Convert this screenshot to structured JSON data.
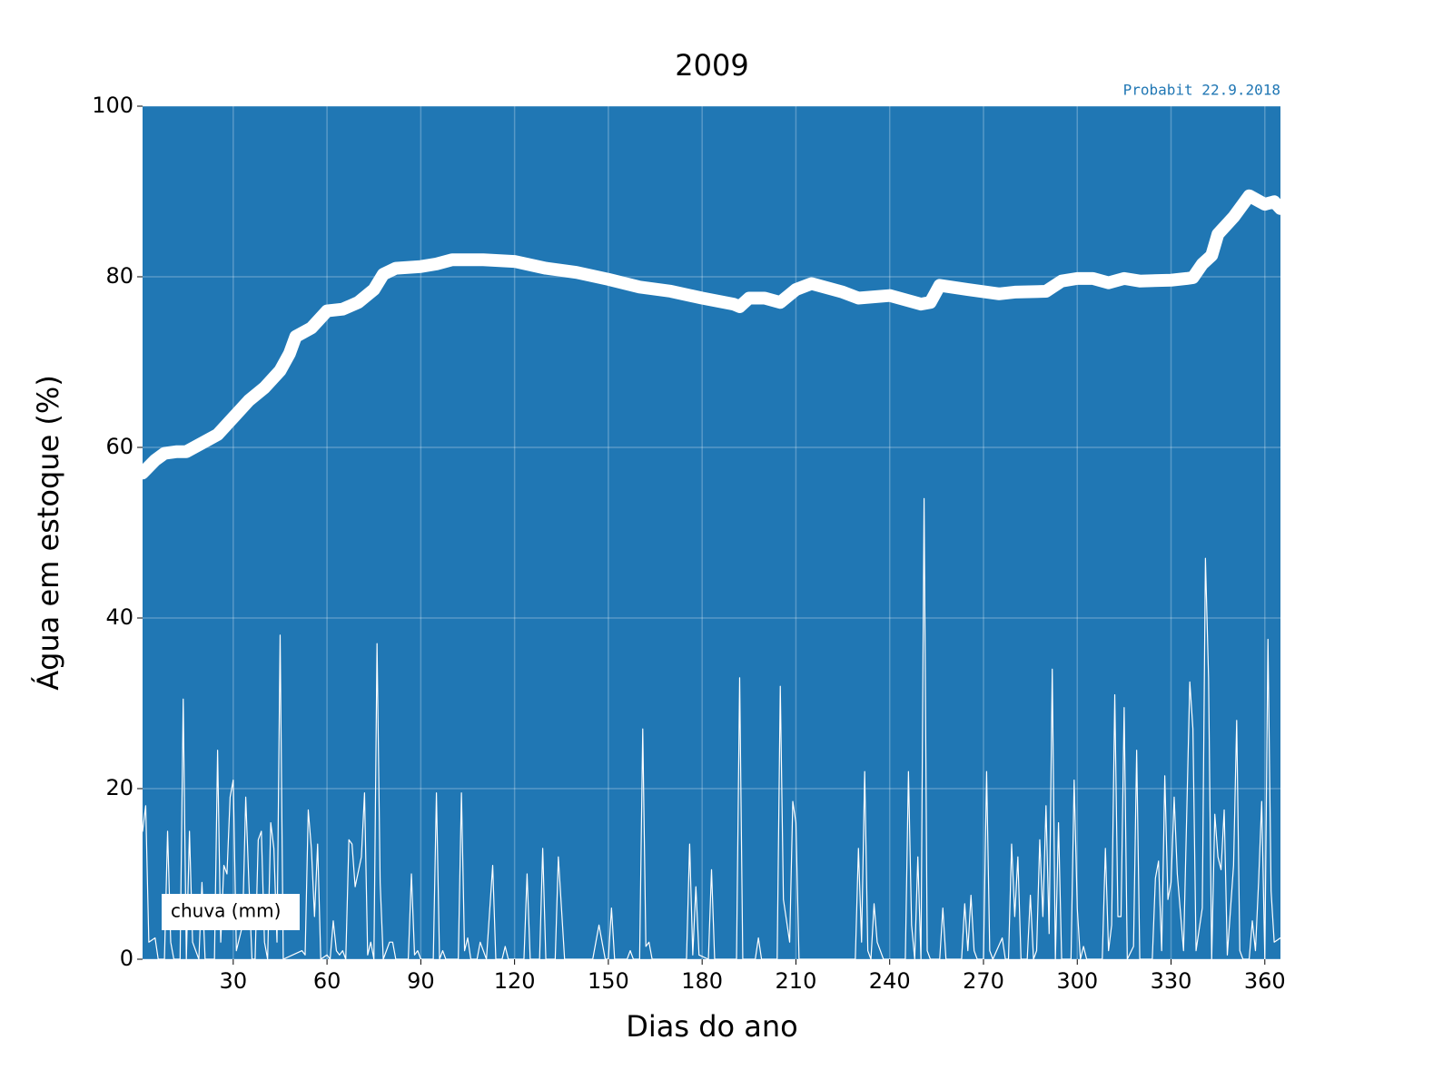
{
  "chart_data": {
    "type": "line",
    "title": "2009",
    "annotation": "Probabit 22.9.2018",
    "xlabel": "Dias do ano",
    "ylabel": "Água em estoque (%)",
    "xlim": [
      1,
      365
    ],
    "ylim": [
      0,
      100
    ],
    "xticks": [
      30,
      60,
      90,
      120,
      150,
      180,
      210,
      240,
      270,
      300,
      330,
      360
    ],
    "yticks": [
      0,
      20,
      40,
      60,
      80,
      100
    ],
    "grid": true,
    "background": "#2077b4",
    "legend": "lower left",
    "series": [
      {
        "color": "#ffffff",
        "line_width": 14,
        "x": [
          1,
          5,
          8,
          12,
          15,
          20,
          25,
          30,
          35,
          40,
          45,
          48,
          50,
          55,
          60,
          65,
          70,
          75,
          78,
          82,
          90,
          95,
          100,
          110,
          120,
          130,
          140,
          150,
          160,
          170,
          180,
          190,
          192,
          195,
          200,
          205,
          210,
          215,
          225,
          230,
          240,
          250,
          253,
          256,
          265,
          275,
          280,
          290,
          295,
          300,
          305,
          310,
          315,
          320,
          330,
          335,
          337,
          340,
          343,
          345,
          350,
          355,
          360,
          363,
          365
        ],
        "values": [
          57,
          58.5,
          59.3,
          59.5,
          59.5,
          60.5,
          61.5,
          63.5,
          65.5,
          67,
          69,
          71,
          73,
          74,
          76,
          76.2,
          77,
          78.5,
          80.3,
          81,
          81.2,
          81.5,
          82,
          82,
          81.8,
          81,
          80.5,
          79.7,
          78.8,
          78.3,
          77.5,
          76.8,
          76.5,
          77.5,
          77.5,
          77,
          78.5,
          79.2,
          78.2,
          77.5,
          77.8,
          76.8,
          77,
          79,
          78.5,
          78,
          78.2,
          78.3,
          79.5,
          79.8,
          79.8,
          79.3,
          79.8,
          79.5,
          79.6,
          79.8,
          79.9,
          81.5,
          82.5,
          85,
          87,
          89.5,
          88.5,
          88.8,
          88
        ]
      },
      {
        "name": "chuva (mm)",
        "color": "#ffffff",
        "line_width": 1.2,
        "x": [
          1,
          2,
          3,
          5,
          6,
          8,
          9,
          10,
          11,
          13,
          14,
          15,
          16,
          17,
          19,
          20,
          21,
          24,
          25,
          26,
          27,
          28,
          29,
          30,
          31,
          33,
          34,
          35,
          36,
          37,
          38,
          39,
          40,
          41,
          42,
          43,
          44,
          45,
          46,
          52,
          53,
          54,
          55,
          56,
          57,
          58,
          60,
          61,
          62,
          63,
          64,
          65,
          66,
          67,
          68,
          69,
          71,
          72,
          73,
          74,
          75,
          76,
          77,
          78,
          80,
          81,
          82,
          86,
          87,
          88,
          89,
          90,
          94,
          95,
          96,
          97,
          98,
          102,
          103,
          104,
          105,
          106,
          108,
          109,
          110,
          111,
          113,
          114,
          116,
          117,
          118,
          123,
          124,
          125,
          128,
          129,
          130,
          133,
          134,
          135,
          136,
          145,
          147,
          149,
          150,
          151,
          152,
          156,
          157,
          158,
          160,
          161,
          162,
          163,
          164,
          175,
          176,
          177,
          178,
          179,
          182,
          183,
          184,
          191,
          192,
          193,
          197,
          198,
          199,
          204,
          205,
          206,
          208,
          209,
          210,
          211,
          229,
          230,
          231,
          232,
          233,
          234,
          235,
          236,
          237,
          238,
          245,
          246,
          247,
          248,
          249,
          250,
          251,
          252,
          253,
          256,
          257,
          258,
          263,
          264,
          265,
          266,
          267,
          268,
          270,
          271,
          272,
          273,
          276,
          277,
          278,
          279,
          280,
          281,
          282,
          284,
          285,
          286,
          287,
          288,
          289,
          290,
          291,
          292,
          293,
          294,
          295,
          298,
          299,
          300,
          301,
          302,
          303,
          308,
          309,
          310,
          311,
          312,
          313,
          314,
          315,
          316,
          318,
          319,
          320,
          324,
          325,
          326,
          327,
          328,
          329,
          330,
          331,
          332,
          334,
          336,
          337,
          338,
          340,
          341,
          342,
          343,
          344,
          345,
          346,
          347,
          348,
          350,
          351,
          352,
          353,
          355,
          356,
          357,
          358,
          359,
          360,
          361,
          362,
          363,
          365
        ],
        "values": [
          15,
          18,
          2,
          2.5,
          0,
          0,
          15,
          2,
          0,
          0,
          30.5,
          0,
          15,
          2,
          0,
          9,
          0,
          0,
          24.5,
          2,
          11,
          10,
          19,
          21,
          1,
          4,
          19,
          9,
          0,
          0,
          14,
          15,
          2,
          0,
          16,
          13,
          2,
          38,
          0,
          1,
          0.5,
          17.5,
          13,
          5,
          13.5,
          0,
          0.5,
          0,
          4.5,
          1,
          0.5,
          1,
          0,
          14,
          13.5,
          8.5,
          12,
          19.5,
          0.5,
          2,
          0,
          37,
          9,
          0,
          2,
          2,
          0,
          0,
          10,
          0.5,
          1,
          0,
          0,
          19.5,
          0,
          1,
          0,
          0,
          19.5,
          1,
          2.5,
          0,
          0,
          2,
          1,
          0,
          11,
          0,
          0,
          1.5,
          0,
          0,
          10,
          0,
          0,
          13,
          0,
          0,
          12,
          6,
          0,
          0,
          4,
          0,
          0,
          6,
          0,
          0,
          1,
          0,
          0,
          27,
          1.5,
          2,
          0,
          0,
          13.5,
          0.5,
          8.5,
          0.5,
          0,
          10.5,
          0,
          0,
          33,
          0,
          0,
          2.5,
          0,
          0,
          32,
          7,
          2,
          18.5,
          16,
          0,
          0,
          13,
          2,
          22,
          1,
          0,
          6.5,
          2,
          1,
          0,
          0,
          22,
          4,
          0,
          12,
          0,
          54,
          1,
          0,
          0,
          6,
          0,
          0,
          6.5,
          1,
          7.5,
          1,
          0,
          0,
          22,
          1,
          0,
          2.5,
          0,
          0,
          13.5,
          5,
          12,
          0,
          0,
          7.5,
          0,
          1,
          14,
          5,
          18,
          3,
          34,
          0,
          16,
          0,
          0,
          21,
          6,
          0,
          1.5,
          0,
          0,
          13,
          1,
          4,
          31,
          5,
          5,
          29.5,
          0,
          1.5,
          24.5,
          0,
          0,
          9.5,
          11.5,
          1,
          21.5,
          7,
          9,
          19,
          10,
          1,
          32.5,
          27,
          1,
          6,
          47,
          33,
          0,
          17,
          12,
          10.5,
          17.5,
          0.5,
          11,
          28,
          1,
          0,
          0,
          4.5,
          1,
          9,
          18.5,
          0,
          37.5,
          8,
          2,
          2.5
        ]
      }
    ]
  }
}
